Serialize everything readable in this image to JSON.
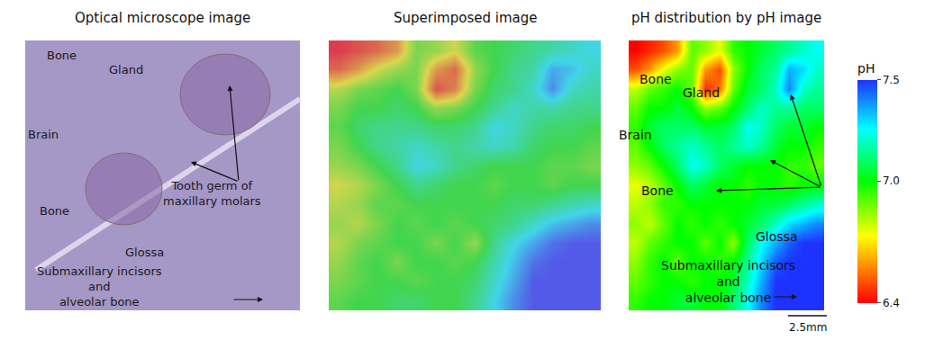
{
  "chart_data": [
    {
      "type": "image",
      "title": "Optical microscope image",
      "annotations": [
        {
          "lines": [
            "Bone"
          ]
        },
        {
          "lines": [
            "Gland"
          ]
        },
        {
          "lines": [
            "Brain"
          ]
        },
        {
          "lines": [
            "Bone"
          ]
        },
        {
          "lines": [
            "Tooth germ of",
            "maxillary molars"
          ]
        },
        {
          "lines": [
            "Glossa"
          ]
        },
        {
          "lines": [
            "Submaxillary incisors",
            "and",
            "alveolar bone"
          ]
        }
      ]
    },
    {
      "type": "overlay",
      "title": "Superimposed image"
    },
    {
      "type": "heatmap",
      "title": "pH distribution by pH image",
      "tick_labels": false,
      "cells": [
        [
          6.4,
          6.45,
          6.5,
          6.6,
          6.9,
          6.85,
          6.75,
          6.95,
          7.0,
          7.05,
          7.1,
          7.15,
          7.2,
          7.25
        ],
        [
          6.5,
          6.6,
          6.75,
          6.85,
          6.9,
          6.6,
          6.5,
          6.85,
          7.0,
          7.1,
          7.15,
          7.35,
          7.3,
          7.2
        ],
        [
          6.8,
          6.9,
          6.95,
          7.0,
          6.9,
          6.45,
          6.55,
          6.9,
          7.05,
          7.1,
          7.2,
          7.4,
          7.2,
          7.15
        ],
        [
          6.9,
          7.0,
          7.0,
          7.05,
          7.0,
          6.85,
          6.9,
          7.0,
          7.1,
          7.2,
          7.15,
          7.15,
          7.1,
          7.1
        ],
        [
          6.95,
          7.05,
          7.1,
          7.1,
          7.1,
          7.05,
          7.05,
          7.1,
          7.25,
          7.2,
          7.1,
          7.05,
          7.05,
          7.0
        ],
        [
          6.9,
          7.0,
          7.1,
          7.15,
          7.2,
          7.15,
          7.1,
          7.15,
          7.2,
          7.15,
          7.05,
          7.0,
          7.0,
          6.95
        ],
        [
          6.85,
          6.9,
          7.0,
          7.1,
          7.25,
          7.2,
          7.1,
          7.05,
          7.0,
          7.0,
          7.0,
          6.95,
          6.95,
          6.9
        ],
        [
          6.75,
          6.8,
          6.9,
          7.0,
          7.1,
          7.05,
          7.0,
          7.0,
          6.95,
          7.0,
          7.0,
          6.95,
          7.0,
          7.0
        ],
        [
          6.8,
          6.85,
          6.95,
          6.95,
          7.0,
          7.0,
          7.0,
          7.0,
          7.0,
          7.05,
          7.05,
          7.1,
          7.15,
          7.2
        ],
        [
          6.85,
          6.8,
          6.9,
          7.0,
          6.95,
          7.0,
          6.95,
          7.0,
          7.05,
          7.1,
          7.2,
          7.3,
          7.35,
          7.4
        ],
        [
          6.8,
          6.9,
          6.95,
          7.0,
          7.0,
          6.9,
          7.0,
          6.85,
          7.1,
          7.25,
          7.35,
          7.45,
          7.5,
          7.5
        ],
        [
          6.85,
          6.95,
          7.0,
          6.9,
          7.0,
          7.0,
          6.95,
          7.0,
          7.15,
          7.3,
          7.45,
          7.5,
          7.5,
          7.5
        ],
        [
          6.9,
          6.95,
          7.0,
          7.0,
          6.95,
          7.0,
          7.0,
          7.05,
          7.2,
          7.35,
          7.5,
          7.5,
          7.5,
          7.5
        ],
        [
          6.95,
          7.0,
          7.0,
          7.05,
          7.05,
          7.0,
          7.0,
          7.1,
          7.25,
          7.4,
          7.5,
          7.5,
          7.5,
          7.5
        ]
      ],
      "colorbar": {
        "title": "pH",
        "range": [
          6.4,
          7.5
        ],
        "ticks": [
          7.5,
          {
            "value": 7,
            "label": "7.0"
          },
          6.4
        ]
      },
      "annotations": [
        {
          "lines": [
            "Bone"
          ]
        },
        {
          "lines": [
            "Gland"
          ]
        },
        {
          "lines": [
            "Brain"
          ]
        },
        {
          "lines": [
            "Bone"
          ]
        },
        {
          "lines": [
            "Glossa"
          ]
        },
        {
          "lines": [
            "Submaxillary incisors",
            "and",
            "alveolar bone"
          ]
        }
      ],
      "scale_bar": "2.5mm"
    }
  ]
}
